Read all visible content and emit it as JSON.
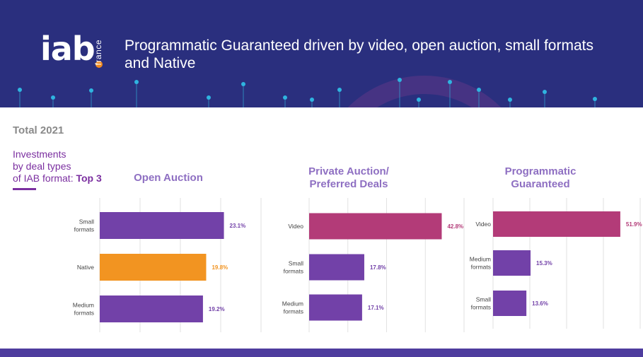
{
  "header": {
    "logo_text": "iab",
    "logo_sub": "france",
    "title": "Programmatic Guaranteed driven by video, open auction, small formats and Native"
  },
  "total_label": "Total 2021",
  "subtitle": {
    "line1": "Investments",
    "line2": "by deal types",
    "line3_prefix": "of IAB format: ",
    "line3_bold": "Top 3"
  },
  "colors": {
    "header_bg": "#2a2f7e",
    "purple": "#7241a8",
    "orange": "#f29421",
    "magenta": "#b33b78",
    "panel_title": "#8e6fc2",
    "accent": "#7b2fa0"
  },
  "chart_data": [
    {
      "type": "bar",
      "orientation": "horizontal",
      "title": "Open Auction",
      "categories": [
        "Small formats",
        "Native",
        "Medium formats"
      ],
      "values": [
        23.1,
        19.8,
        19.2
      ],
      "labels": [
        "23.1%",
        "19.8%",
        "19.2%"
      ],
      "colors": [
        "#7241a8",
        "#f29421",
        "#7241a8"
      ],
      "xlim": [
        0,
        30
      ],
      "grid": true
    },
    {
      "type": "bar",
      "orientation": "horizontal",
      "title": "Private Auction/ Preferred Deals",
      "categories": [
        "Video",
        "Small formats",
        "Medium formats"
      ],
      "values": [
        42.8,
        17.8,
        17.1
      ],
      "labels": [
        "42.8%",
        "17.8%",
        "17.1%"
      ],
      "colors": [
        "#b33b78",
        "#7241a8",
        "#7241a8"
      ],
      "xlim": [
        0,
        50
      ],
      "grid": true
    },
    {
      "type": "bar",
      "orientation": "horizontal",
      "title": "Programmatic Guaranteed",
      "categories": [
        "Video",
        "Medium formats",
        "Small formats"
      ],
      "values": [
        51.9,
        15.3,
        13.6
      ],
      "labels": [
        "51.9%",
        "15.3%",
        "13.6%"
      ],
      "colors": [
        "#b33b78",
        "#7241a8",
        "#7241a8"
      ],
      "xlim": [
        0,
        60
      ],
      "grid": true
    }
  ]
}
